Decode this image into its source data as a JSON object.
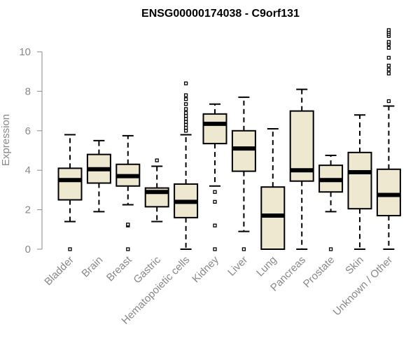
{
  "chart_data": {
    "type": "boxplot",
    "title": "ENSG00000174038 - C9orf131",
    "xlabel": "",
    "ylabel": "Expression",
    "ylim": [
      0,
      11.2
    ],
    "yticks": [
      0,
      2,
      4,
      6,
      8,
      10
    ],
    "box_fill": "#EEE8D0",
    "median_color": "#000000",
    "categories": [
      "Bladder",
      "Brain",
      "Breast",
      "Gastric",
      "Hematopoietic cells",
      "Kidney",
      "Liver",
      "Lung",
      "Pancreas",
      "Prostate",
      "Skin",
      "Unknown / Other"
    ],
    "boxes": [
      {
        "whisker_low": 1.4,
        "q1": 2.5,
        "median": 3.5,
        "q3": 4.1,
        "whisker_high": 5.8,
        "outliers": [
          0.0
        ]
      },
      {
        "whisker_low": 1.9,
        "q1": 3.35,
        "median": 4.05,
        "q3": 4.8,
        "whisker_high": 5.5,
        "outliers": []
      },
      {
        "whisker_low": 2.25,
        "q1": 3.2,
        "median": 3.7,
        "q3": 4.3,
        "whisker_high": 5.75,
        "outliers": [
          1.2,
          1.25,
          0.0
        ]
      },
      {
        "whisker_low": 1.4,
        "q1": 2.15,
        "median": 2.9,
        "q3": 3.1,
        "whisker_high": 4.2,
        "outliers": [
          4.5
        ]
      },
      {
        "whisker_low": 0.0,
        "q1": 1.6,
        "median": 2.4,
        "q3": 3.3,
        "whisker_high": 5.8,
        "outliers": [
          6.0,
          6.15,
          6.3,
          6.45,
          6.6,
          6.75,
          6.9,
          7.1,
          7.35,
          7.6,
          7.8,
          8.4
        ]
      },
      {
        "whisker_low": 3.2,
        "q1": 5.35,
        "median": 6.35,
        "q3": 6.85,
        "whisker_high": 7.35,
        "outliers": [
          2.9,
          2.4,
          1.2,
          0.0
        ]
      },
      {
        "whisker_low": 0.9,
        "q1": 3.95,
        "median": 5.1,
        "q3": 6.0,
        "whisker_high": 7.7,
        "outliers": [
          0.0
        ]
      },
      {
        "whisker_low": 0.0,
        "q1": 0.0,
        "median": 1.7,
        "q3": 3.15,
        "whisker_high": 6.1,
        "outliers": []
      },
      {
        "whisker_low": 0.0,
        "q1": 3.45,
        "median": 4.0,
        "q3": 7.0,
        "whisker_high": 8.1,
        "outliers": []
      },
      {
        "whisker_low": 1.9,
        "q1": 2.9,
        "median": 3.5,
        "q3": 4.25,
        "whisker_high": 4.75,
        "outliers": [
          0.0
        ]
      },
      {
        "whisker_low": 0.0,
        "q1": 2.05,
        "median": 3.9,
        "q3": 4.9,
        "whisker_high": 6.8,
        "outliers": []
      },
      {
        "whisker_low": 0.0,
        "q1": 1.7,
        "median": 2.75,
        "q3": 4.05,
        "whisker_high": 7.25,
        "outliers": [
          7.5,
          8.9,
          9.1,
          9.3,
          9.7,
          10.2,
          10.4,
          10.5,
          10.8,
          10.9,
          11.0,
          11.1
        ]
      }
    ]
  }
}
